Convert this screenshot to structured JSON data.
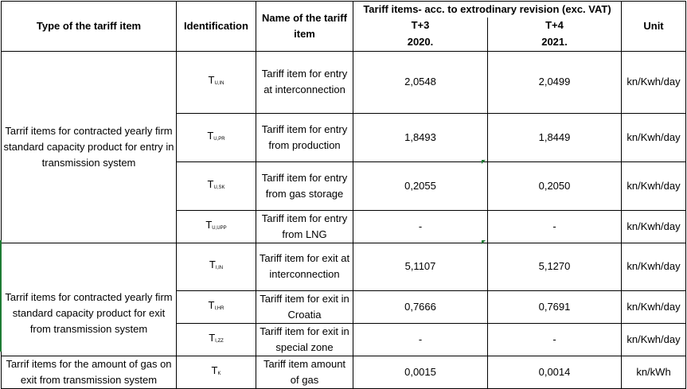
{
  "table": {
    "headers": {
      "type": "Type of the tariff item",
      "identification": "Identification",
      "name": "Name of the tariff item",
      "group": "Tariff items- acc. to extrodinary revision (exc. VAT)",
      "t3": "T+3",
      "t3_year": "2020.",
      "t4": "T+4",
      "t4_year": "2021.",
      "unit": "Unit"
    },
    "sections": [
      {
        "type": "Tarrif items for contracted yearly firm standard capacity product for entry in transmission system",
        "rows": [
          {
            "code_base": "T",
            "code_sub": "U,IN",
            "name": "Tariff item for entry at interconnection",
            "t3": "2,0548",
            "t4": "2,0499",
            "unit": "kn/Kwh/day"
          },
          {
            "code_base": "T",
            "code_sub": "U,PR",
            "name": "Tariff item for entry from production",
            "t3": "1,8493",
            "t4": "1,8449",
            "unit": "kn/Kwh/day"
          },
          {
            "code_base": "T",
            "code_sub": "U,SK",
            "name": "Tariff item for entry from gas storage",
            "t3": "0,2055",
            "t4": "0,2050",
            "unit": "kn/Kwh/day"
          },
          {
            "code_base": "T",
            "code_sub": "U,UPP",
            "name": "Tariff item for entry from LNG",
            "t3": "-",
            "t4": "-",
            "unit": "kn/Kwh/day"
          }
        ]
      },
      {
        "type": "Tarrif items for contracted yearly firm standard capacity product for exit from transmission system",
        "rows": [
          {
            "code_base": "T",
            "code_sub": "I,IN",
            "name": "Tariff item for exit at interconnection",
            "t3": "5,1107",
            "t4": "5,1270",
            "unit": "kn/Kwh/day"
          },
          {
            "code_base": "T",
            "code_sub": "I,HR",
            "name": "Tariff item for exit in Croatia",
            "t3": "0,7666",
            "t4": "0,7691",
            "unit": "kn/Kwh/day"
          },
          {
            "code_base": "T",
            "code_sub": "I,ZZ",
            "name": "Tariff item for exit in special zone",
            "t3": "-",
            "t4": "-",
            "unit": "kn/Kwh/day"
          }
        ]
      },
      {
        "type": "Tarrif items for the amount of gas on exit from transmission system",
        "rows": [
          {
            "code_base": "T",
            "code_sub": "K",
            "name": "Tariff item amount of gas",
            "t3": "0,0015",
            "t4": "0,0014",
            "unit": "kn/kWh"
          }
        ]
      }
    ]
  }
}
